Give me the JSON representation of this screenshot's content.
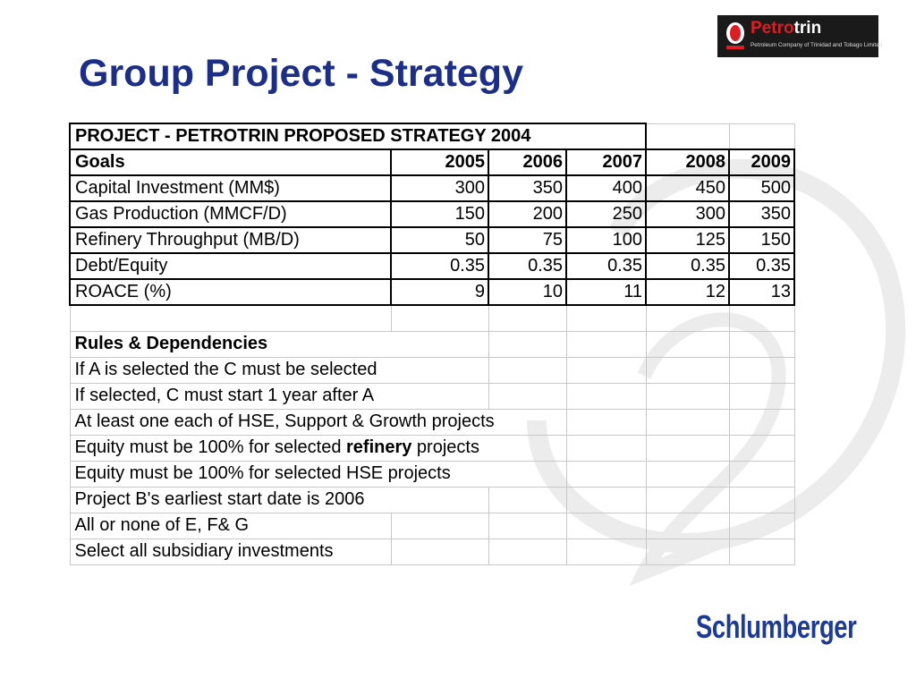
{
  "slide": {
    "title": "Group Project - Strategy"
  },
  "logo": {
    "brand_prefix": "Petro",
    "brand_suffix": "trin",
    "tagline": "Petroleum Company of Trinidad and Tobago Limited",
    "emblem_icon": "petrotrin-flame-emblem-icon"
  },
  "table": {
    "caption": "PROJECT - PETROTRIN PROPOSED STRATEGY 2004",
    "goals_header": "Goals",
    "years": [
      "2005",
      "2006",
      "2007",
      "2008",
      "2009"
    ],
    "goals": [
      {
        "label": "Capital Investment (MM$)",
        "values": [
          "300",
          "350",
          "400",
          "450",
          "500"
        ]
      },
      {
        "label": "Gas Production (MMCF/D)",
        "values": [
          "150",
          "200",
          "250",
          "300",
          "350"
        ]
      },
      {
        "label": "Refinery Throughput (MB/D)",
        "values": [
          "50",
          "75",
          "100",
          "125",
          "150"
        ]
      },
      {
        "label": "Debt/Equity",
        "values": [
          "0.35",
          "0.35",
          "0.35",
          "0.35",
          "0.35"
        ]
      },
      {
        "label": "ROACE (%)",
        "values": [
          "9",
          "10",
          "11",
          "12",
          "13"
        ]
      }
    ],
    "rules_header": "Rules & Dependencies",
    "rules": {
      "r1": "If A is selected the C must be selected",
      "r2": "If selected, C must start 1 year after A",
      "r3": "At least one each of HSE, Support & Growth projects",
      "r4_pre": "Equity must be 100% for selected ",
      "r4_bold": "refinery",
      "r4_post": " projects",
      "r5": "Equity must be 100% for selected HSE projects",
      "r6": "Project B's earliest start date is 2006",
      "r7": "All or none of E, F& G",
      "r8": "Select all subsidiary investments"
    }
  },
  "footer": {
    "company": "Schlumberger"
  },
  "colors": {
    "title_blue": "#1b2f8a",
    "brand_red": "#e01b22",
    "schlumberger_blue": "#1b3a9a"
  }
}
